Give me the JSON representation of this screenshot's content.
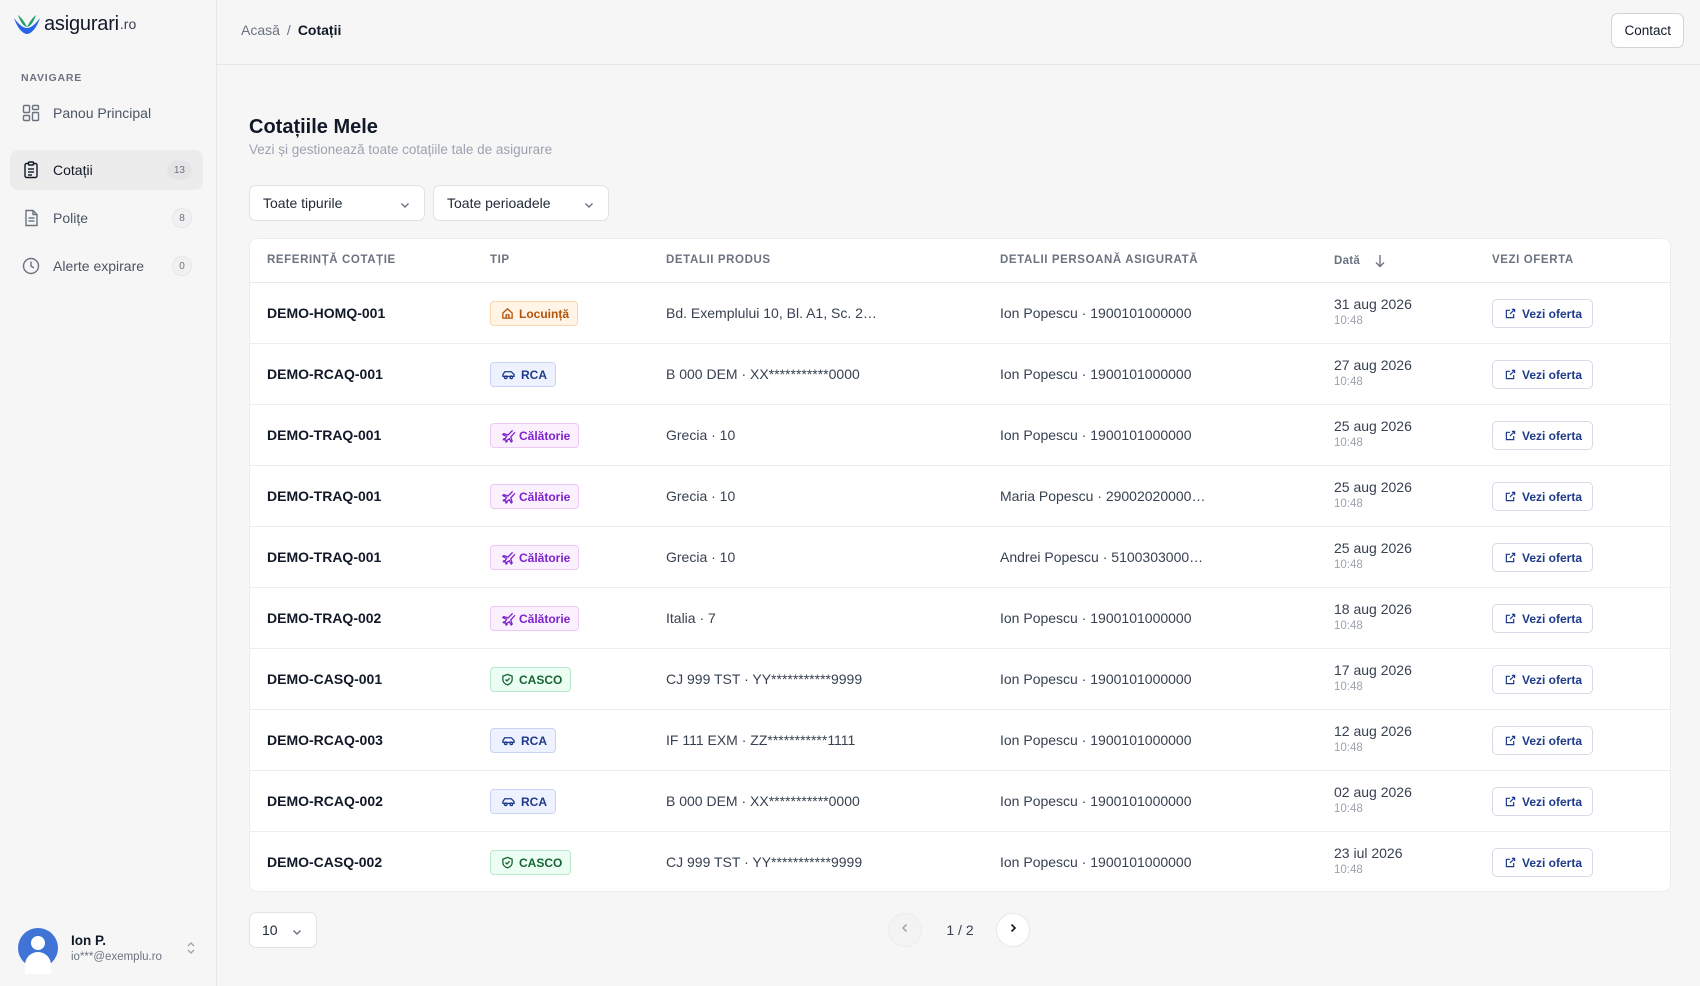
{
  "brand": {
    "name": "asigurari",
    "suffix": ".ro"
  },
  "sidebar": {
    "section_title": "NAVIGARE",
    "items": [
      {
        "label": "Panou Principal",
        "icon": "dashboard-icon",
        "count": null,
        "active": false
      },
      {
        "label": "Cotații",
        "icon": "clipboard-icon",
        "count": "13",
        "active": true
      },
      {
        "label": "Polițe",
        "icon": "document-icon",
        "count": "8",
        "active": false
      },
      {
        "label": "Alerte expirare",
        "icon": "clock-icon",
        "count": "0",
        "active": false
      }
    ]
  },
  "user": {
    "name": "Ion P.",
    "email": "io***@exemplu.ro"
  },
  "header": {
    "breadcrumb": {
      "home": "Acasă",
      "separator": "/",
      "current": "Cotații"
    },
    "contact_label": "Contact"
  },
  "page": {
    "title": "Cotațiile Mele",
    "subtitle": "Vezi și gestionează toate cotațiile tale de asigurare"
  },
  "filters": {
    "type_selected": "Toate tipurile",
    "period_selected": "Toate perioadele"
  },
  "table": {
    "columns": [
      "Referință cotație",
      "Tip",
      "Detalii produs",
      "Detalii persoană asigurată",
      "Dată",
      "Vezi oferta"
    ],
    "offer_label": "Vezi oferta",
    "rows": [
      {
        "ref": "DEMO-HOMQ-001",
        "type": "Locuință",
        "kind": "home",
        "product": "Bd. Exemplului 10, Bl. A1, Sc. 2…",
        "person": "Ion Popescu · 1900101000000",
        "date": "31 aug 2026",
        "time": "10:48"
      },
      {
        "ref": "DEMO-RCAQ-001",
        "type": "RCA",
        "kind": "rca",
        "product": "B 000 DEM · XX***********0000",
        "person": "Ion Popescu · 1900101000000",
        "date": "27 aug 2026",
        "time": "10:48"
      },
      {
        "ref": "DEMO-TRAQ-001",
        "type": "Călătorie",
        "kind": "travel",
        "product": "Grecia · 10",
        "person": "Ion Popescu · 1900101000000",
        "date": "25 aug 2026",
        "time": "10:48"
      },
      {
        "ref": "DEMO-TRAQ-001",
        "type": "Călătorie",
        "kind": "travel",
        "product": "Grecia · 10",
        "person": "Maria Popescu · 29002020000…",
        "date": "25 aug 2026",
        "time": "10:48"
      },
      {
        "ref": "DEMO-TRAQ-001",
        "type": "Călătorie",
        "kind": "travel",
        "product": "Grecia · 10",
        "person": "Andrei Popescu · 5100303000…",
        "date": "25 aug 2026",
        "time": "10:48"
      },
      {
        "ref": "DEMO-TRAQ-002",
        "type": "Călătorie",
        "kind": "travel",
        "product": "Italia · 7",
        "person": "Ion Popescu · 1900101000000",
        "date": "18 aug 2026",
        "time": "10:48"
      },
      {
        "ref": "DEMO-CASQ-001",
        "type": "CASCO",
        "kind": "casco",
        "product": "CJ 999 TST · YY***********9999",
        "person": "Ion Popescu · 1900101000000",
        "date": "17 aug 2026",
        "time": "10:48"
      },
      {
        "ref": "DEMO-RCAQ-003",
        "type": "RCA",
        "kind": "rca",
        "product": "IF 111 EXM · ZZ***********1111",
        "person": "Ion Popescu · 1900101000000",
        "date": "12 aug 2026",
        "time": "10:48"
      },
      {
        "ref": "DEMO-RCAQ-002",
        "type": "RCA",
        "kind": "rca",
        "product": "B 000 DEM · XX***********0000",
        "person": "Ion Popescu · 1900101000000",
        "date": "02 aug 2026",
        "time": "10:48"
      },
      {
        "ref": "DEMO-CASQ-002",
        "type": "CASCO",
        "kind": "casco",
        "product": "CJ 999 TST · YY***********9999",
        "person": "Ion Popescu · 1900101000000",
        "date": "23 iul 2026",
        "time": "10:48"
      }
    ]
  },
  "pagination": {
    "page_size": "10",
    "status": "1 / 2"
  },
  "colors": {
    "accent": "#1e3a8a",
    "brand_blue": "#3f73d6",
    "brand_green": "#22a06b"
  }
}
